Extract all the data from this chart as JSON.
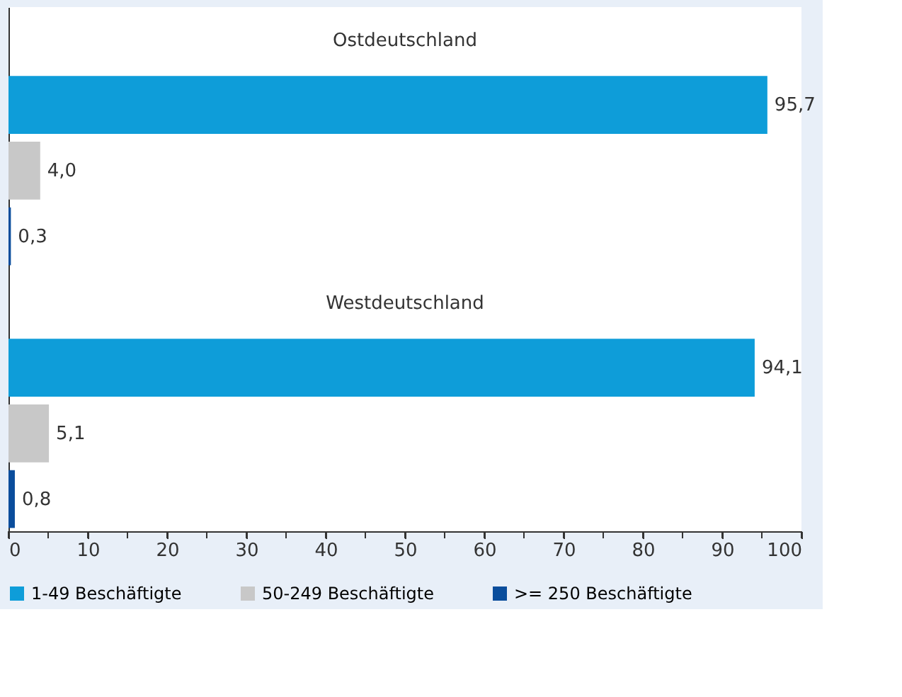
{
  "chart_data": {
    "type": "bar",
    "orientation": "horizontal",
    "categories": [
      "Ostdeutschland",
      "Westdeutschland"
    ],
    "series": [
      {
        "name": "1-49 Beschäftigte",
        "color": "#0e9dd9",
        "values": [
          95.7,
          94.1
        ],
        "value_labels": [
          "95,7",
          "94,1"
        ]
      },
      {
        "name": "50-249 Beschäftigte",
        "color": "#c8c8c8",
        "values": [
          4.0,
          5.1
        ],
        "value_labels": [
          "4,0",
          "5,1"
        ]
      },
      {
        "name": ">= 250 Beschäftigte",
        "color": "#0a4d9c",
        "values": [
          0.3,
          0.8
        ],
        "value_labels": [
          "0,3",
          "0,8"
        ]
      }
    ],
    "xlim": [
      0,
      100
    ],
    "xticks": [
      0,
      {
        "value": 5,
        "label": null
      },
      10,
      {
        "value": 15,
        "label": null
      },
      20,
      {
        "value": 25,
        "label": null
      },
      30,
      {
        "value": 35,
        "label": null
      },
      40,
      {
        "value": 45,
        "label": null
      },
      50,
      {
        "value": 55,
        "label": null
      },
      60,
      {
        "value": 65,
        "label": null
      },
      70,
      {
        "value": 75,
        "label": null
      },
      80,
      {
        "value": 85,
        "label": null
      },
      90,
      {
        "value": 95,
        "label": null
      },
      100
    ],
    "tick_labels": "x",
    "legend": "bottom"
  }
}
